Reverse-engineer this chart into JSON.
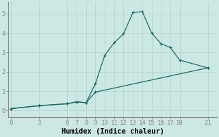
{
  "xlabel": "Humidex (Indice chaleur)",
  "bg_color": "#cce8e4",
  "grid_color": "#b8d8d4",
  "line_color": "#1a6b5e",
  "line1_x": [
    0,
    3,
    6,
    7,
    8,
    9,
    10,
    11,
    12,
    13,
    14,
    15,
    16,
    17,
    18,
    21
  ],
  "line1_y": [
    0.1,
    0.25,
    0.35,
    0.45,
    0.4,
    1.4,
    2.85,
    3.5,
    3.95,
    5.05,
    5.1,
    4.0,
    3.45,
    3.25,
    2.6,
    2.2
  ],
  "line2_x": [
    0,
    3,
    6,
    7,
    8,
    9,
    21
  ],
  "line2_y": [
    0.1,
    0.25,
    0.35,
    0.45,
    0.4,
    0.95,
    2.2
  ],
  "xticks": [
    0,
    3,
    6,
    7,
    8,
    9,
    10,
    11,
    12,
    13,
    14,
    15,
    16,
    17,
    18,
    21
  ],
  "yticks": [
    0,
    1,
    2,
    3,
    4,
    5
  ],
  "xlim": [
    -0.3,
    22.0
  ],
  "ylim": [
    -0.35,
    5.6
  ],
  "tick_fontsize": 6.5,
  "xlabel_fontsize": 7.5,
  "spine_color": "#888888"
}
